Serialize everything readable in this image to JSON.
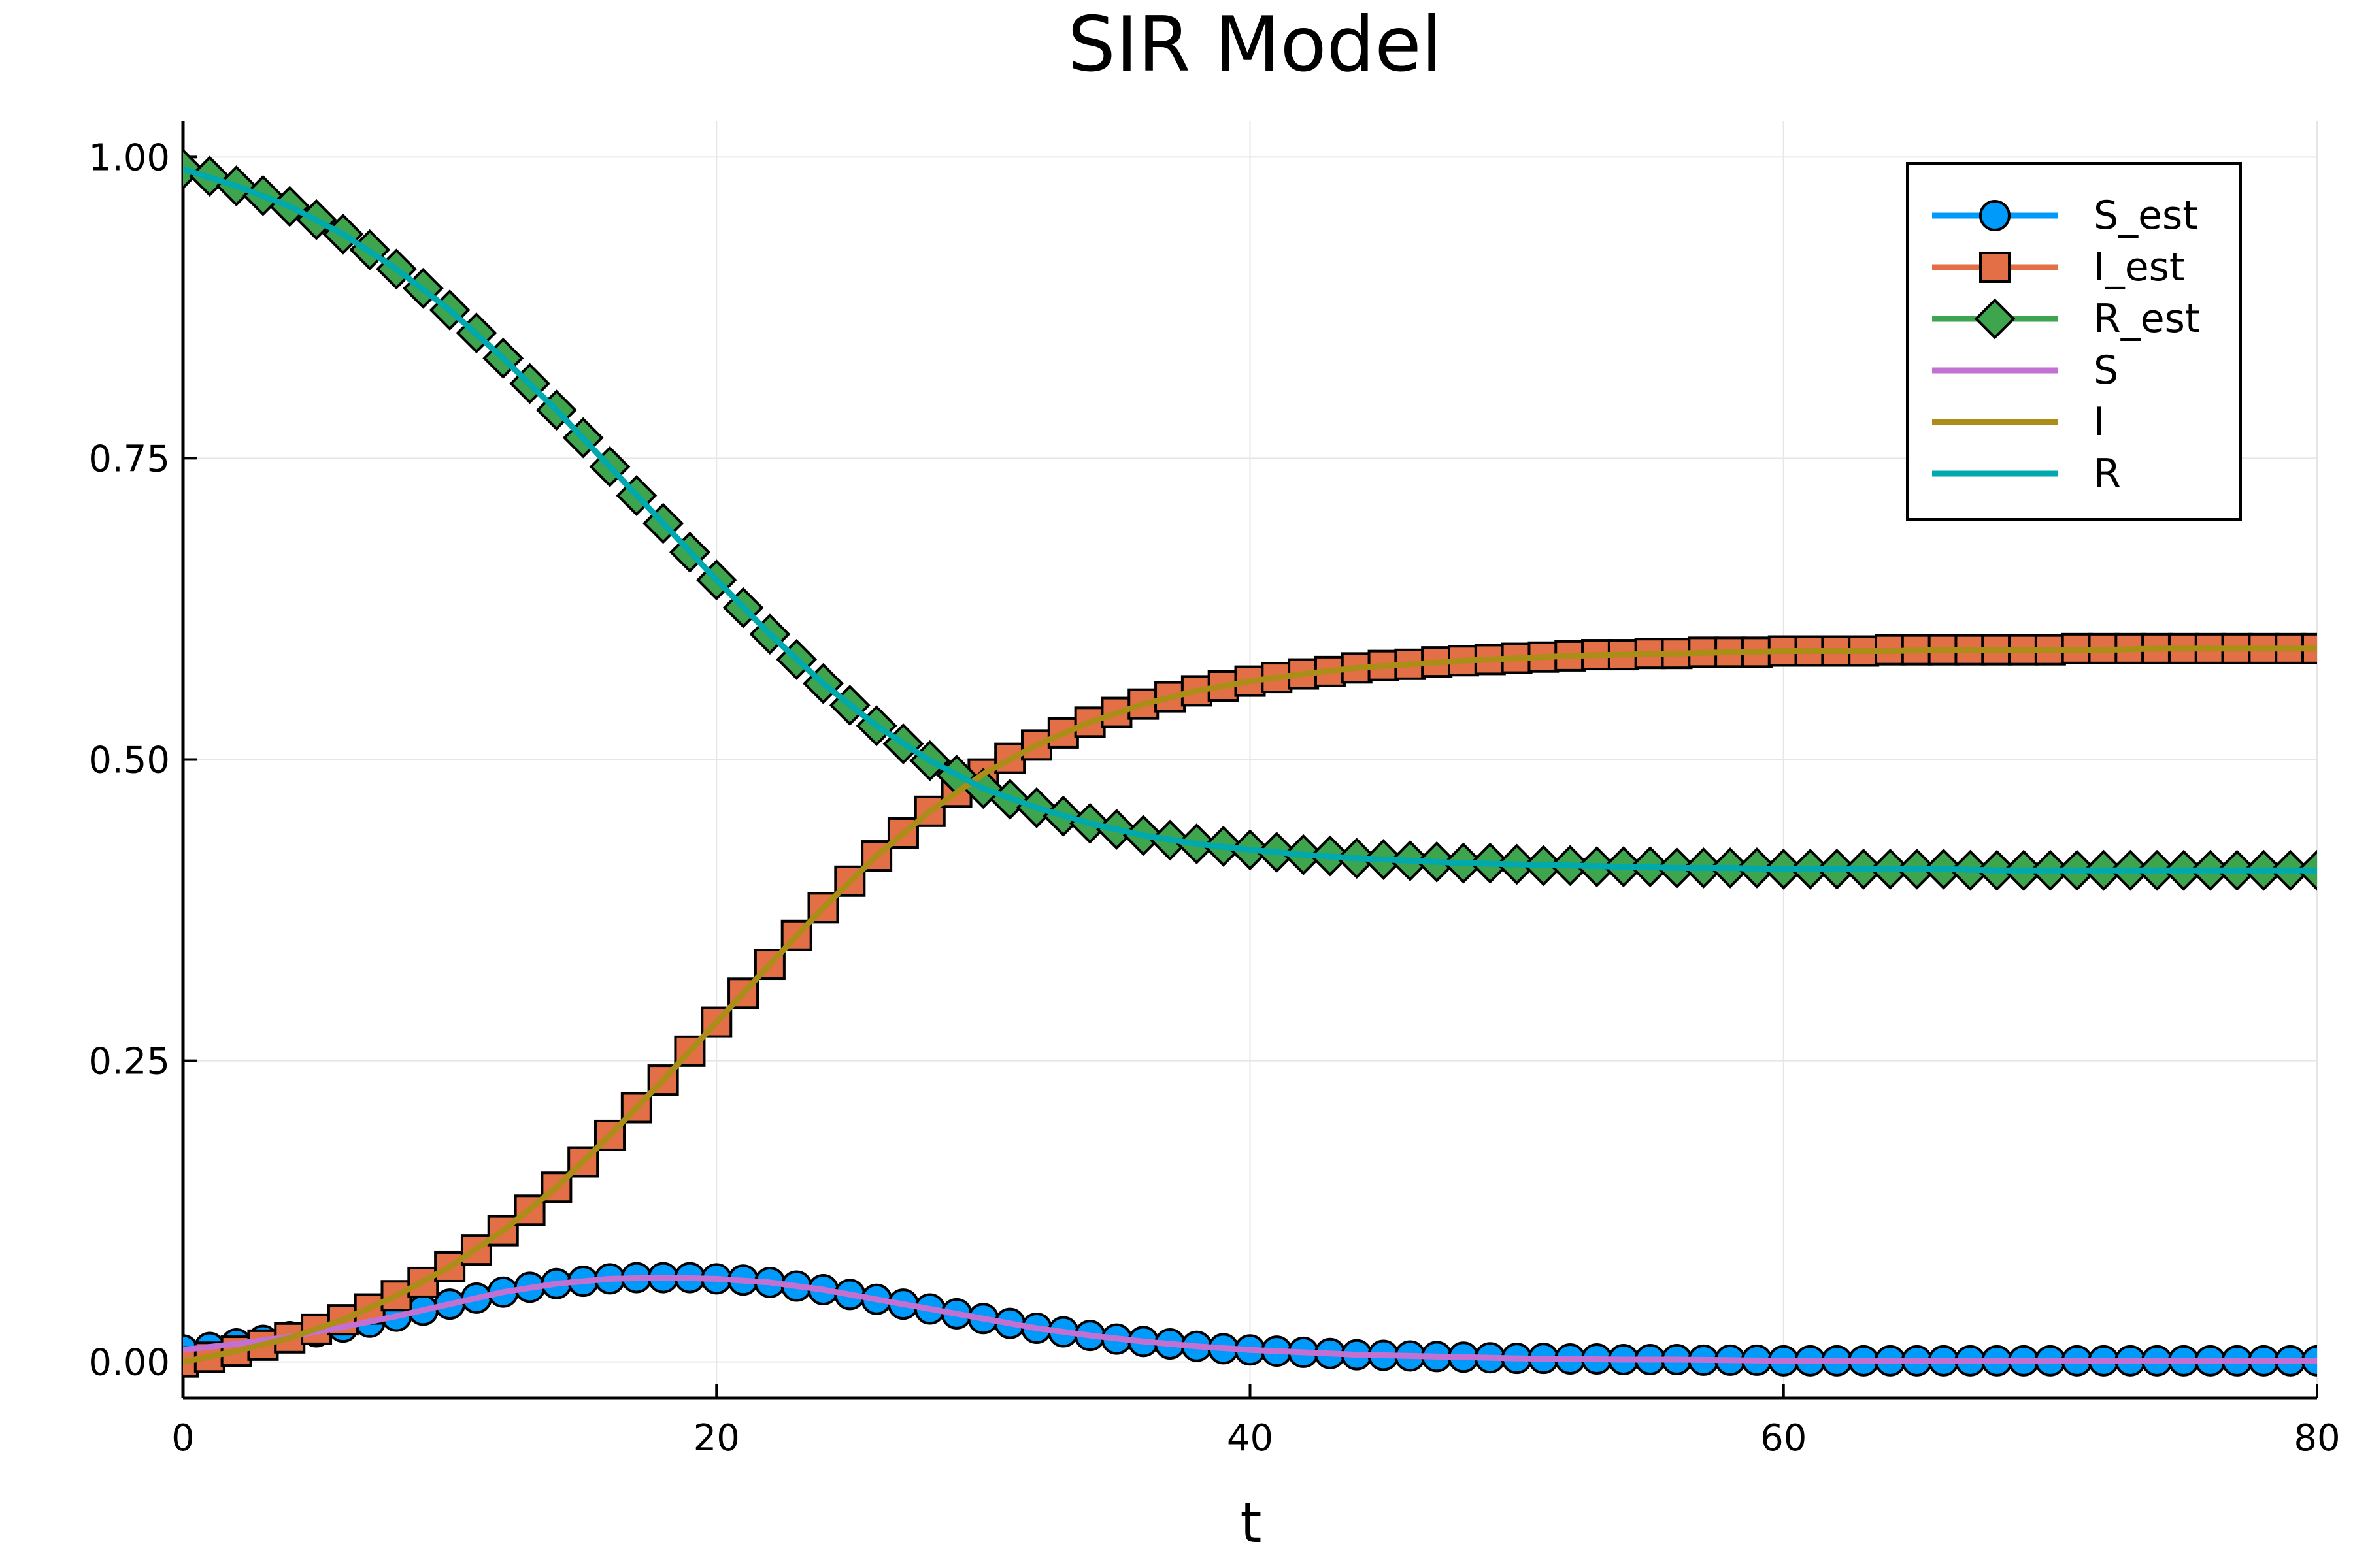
{
  "chart_data": {
    "type": "line",
    "title": "SIR Model",
    "xlabel": "t",
    "ylabel": "",
    "xlim": [
      0,
      80
    ],
    "ylim": [
      -0.03,
      1.03
    ],
    "xticks": [
      0,
      20,
      40,
      60,
      80
    ],
    "xtick_labels": [
      "0",
      "20",
      "40",
      "60",
      "80"
    ],
    "yticks": [
      0,
      0.25,
      0.5,
      0.75,
      1.0
    ],
    "ytick_labels": [
      "0.00",
      "0.25",
      "0.50",
      "0.75",
      "1.00"
    ],
    "grid": true,
    "legend_position": "top-right",
    "marker_t": [
      0,
      1,
      2,
      3,
      4,
      5,
      6,
      7,
      8,
      9,
      10,
      11,
      12,
      13,
      14,
      15,
      16,
      17,
      18,
      19,
      20,
      21,
      22,
      23,
      24,
      25,
      26,
      27,
      28,
      29,
      30,
      31,
      32,
      33,
      34,
      35,
      36,
      37,
      38,
      39,
      40,
      41,
      42,
      43,
      44,
      45,
      46,
      47,
      48,
      49,
      50,
      51,
      52,
      53,
      54,
      55,
      56,
      57,
      58,
      59,
      60,
      61,
      62,
      63,
      64,
      65,
      66,
      67,
      68,
      69,
      70,
      71,
      72,
      73,
      74,
      75,
      76,
      77,
      78,
      79,
      80
    ],
    "line_t": [
      0,
      2,
      4,
      6,
      8,
      10,
      12,
      14,
      16,
      18,
      20,
      22,
      24,
      26,
      28,
      30,
      32,
      34,
      36,
      38,
      40,
      42,
      44,
      46,
      48,
      50,
      52,
      54,
      56,
      58,
      60,
      62,
      64,
      66,
      68,
      70,
      72,
      74,
      76,
      78,
      80
    ],
    "series": [
      {
        "name": "S_est",
        "color": "#009AFA",
        "marker": "circle",
        "kind": "markers",
        "values": [
          0.01,
          0.012,
          0.015,
          0.018,
          0.021,
          0.025,
          0.029,
          0.033,
          0.038,
          0.043,
          0.048,
          0.053,
          0.058,
          0.062,
          0.065,
          0.067,
          0.069,
          0.07,
          0.07,
          0.07,
          0.069,
          0.068,
          0.066,
          0.063,
          0.06,
          0.056,
          0.052,
          0.048,
          0.044,
          0.04,
          0.036,
          0.032,
          0.028,
          0.025,
          0.022,
          0.019,
          0.017,
          0.015,
          0.013,
          0.011,
          0.01,
          0.009,
          0.008,
          0.007,
          0.006,
          0.0055,
          0.005,
          0.0045,
          0.004,
          0.0035,
          0.003,
          0.003,
          0.0025,
          0.0025,
          0.002,
          0.002,
          0.002,
          0.0015,
          0.0015,
          0.0015,
          0.001,
          0.001,
          0.001,
          0.001,
          0.001,
          0.001,
          0.001,
          0.001,
          0.001,
          0.001,
          0.001,
          0.001,
          0.001,
          0.001,
          0.001,
          0.001,
          0.001,
          0.001,
          0.001,
          0.001,
          0.001
        ]
      },
      {
        "name": "I_est",
        "color": "#E26F46",
        "marker": "square",
        "kind": "markers",
        "values": [
          0.0,
          0.004,
          0.009,
          0.014,
          0.02,
          0.027,
          0.035,
          0.044,
          0.055,
          0.066,
          0.079,
          0.093,
          0.109,
          0.126,
          0.145,
          0.166,
          0.188,
          0.211,
          0.234,
          0.258,
          0.282,
          0.306,
          0.33,
          0.354,
          0.377,
          0.399,
          0.42,
          0.439,
          0.457,
          0.473,
          0.488,
          0.501,
          0.512,
          0.522,
          0.531,
          0.539,
          0.546,
          0.552,
          0.557,
          0.561,
          0.565,
          0.568,
          0.571,
          0.573,
          0.576,
          0.578,
          0.579,
          0.581,
          0.582,
          0.583,
          0.584,
          0.585,
          0.586,
          0.587,
          0.587,
          0.588,
          0.588,
          0.589,
          0.589,
          0.589,
          0.59,
          0.59,
          0.59,
          0.59,
          0.591,
          0.591,
          0.591,
          0.591,
          0.591,
          0.591,
          0.591,
          0.592,
          0.592,
          0.592,
          0.592,
          0.592,
          0.592,
          0.592,
          0.592,
          0.592,
          0.592
        ]
      },
      {
        "name": "R_est",
        "color": "#3EA44E",
        "marker": "diamond",
        "kind": "markers",
        "values": [
          0.99,
          0.984,
          0.976,
          0.968,
          0.959,
          0.948,
          0.936,
          0.923,
          0.907,
          0.891,
          0.873,
          0.854,
          0.833,
          0.812,
          0.79,
          0.767,
          0.743,
          0.719,
          0.696,
          0.672,
          0.649,
          0.626,
          0.604,
          0.583,
          0.563,
          0.545,
          0.528,
          0.513,
          0.499,
          0.487,
          0.476,
          0.467,
          0.46,
          0.453,
          0.447,
          0.442,
          0.437,
          0.433,
          0.43,
          0.428,
          0.425,
          0.423,
          0.421,
          0.42,
          0.418,
          0.417,
          0.416,
          0.415,
          0.414,
          0.414,
          0.413,
          0.412,
          0.412,
          0.411,
          0.411,
          0.411,
          0.41,
          0.41,
          0.41,
          0.41,
          0.409,
          0.409,
          0.409,
          0.409,
          0.409,
          0.409,
          0.409,
          0.408,
          0.408,
          0.408,
          0.408,
          0.408,
          0.408,
          0.408,
          0.408,
          0.408,
          0.408,
          0.408,
          0.408,
          0.408,
          0.408
        ]
      },
      {
        "name": "S",
        "color": "#C271D2",
        "kind": "line",
        "values": [
          0.01,
          0.015,
          0.021,
          0.029,
          0.038,
          0.048,
          0.058,
          0.065,
          0.069,
          0.07,
          0.069,
          0.066,
          0.06,
          0.052,
          0.044,
          0.036,
          0.028,
          0.022,
          0.017,
          0.013,
          0.01,
          0.008,
          0.006,
          0.005,
          0.004,
          0.003,
          0.0025,
          0.002,
          0.002,
          0.0015,
          0.001,
          0.001,
          0.001,
          0.001,
          0.001,
          0.001,
          0.001,
          0.001,
          0.001,
          0.001,
          0.001
        ]
      },
      {
        "name": "I",
        "color": "#AC8D18",
        "kind": "line",
        "values": [
          0.0,
          0.009,
          0.02,
          0.035,
          0.055,
          0.079,
          0.109,
          0.145,
          0.188,
          0.234,
          0.282,
          0.33,
          0.377,
          0.42,
          0.457,
          0.488,
          0.512,
          0.531,
          0.546,
          0.557,
          0.565,
          0.571,
          0.576,
          0.579,
          0.582,
          0.584,
          0.586,
          0.587,
          0.588,
          0.589,
          0.59,
          0.59,
          0.59,
          0.591,
          0.591,
          0.591,
          0.591,
          0.592,
          0.592,
          0.592,
          0.592
        ]
      },
      {
        "name": "R",
        "color": "#00A9AD",
        "kind": "line",
        "values": [
          0.99,
          0.976,
          0.959,
          0.936,
          0.907,
          0.873,
          0.833,
          0.79,
          0.743,
          0.696,
          0.649,
          0.604,
          0.563,
          0.528,
          0.499,
          0.476,
          0.46,
          0.447,
          0.437,
          0.43,
          0.425,
          0.421,
          0.418,
          0.416,
          0.414,
          0.413,
          0.412,
          0.411,
          0.41,
          0.41,
          0.409,
          0.409,
          0.409,
          0.409,
          0.408,
          0.408,
          0.408,
          0.408,
          0.408,
          0.408,
          0.408
        ]
      }
    ]
  }
}
